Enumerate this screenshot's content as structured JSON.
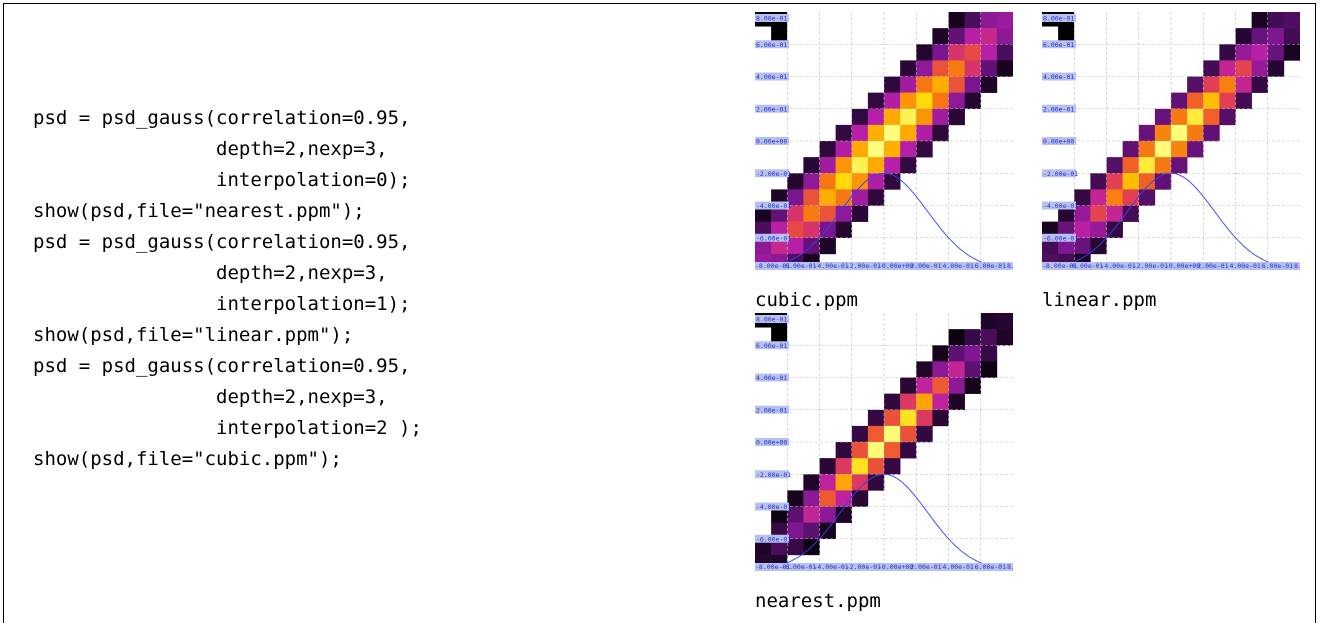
{
  "code": {
    "lines": [
      "psd = psd_gauss(correlation=0.95,",
      "                depth=2,nexp=3,",
      "                interpolation=0);",
      "show(psd,file=\"nearest.ppm\");",
      "psd = psd_gauss(correlation=0.95,",
      "                depth=2,nexp=3,",
      "                interpolation=1);",
      "show(psd,file=\"linear.ppm\");",
      "psd = psd_gauss(correlation=0.95,",
      "                depth=2,nexp=3,",
      "                interpolation=2 );",
      "show(psd,file=\"cubic.ppm\");"
    ]
  },
  "plots": [
    {
      "caption": "cubic.ppm",
      "interpolation": 2
    },
    {
      "caption": "linear.ppm",
      "interpolation": 1
    },
    {
      "caption": "nearest.ppm",
      "interpolation": 0
    }
  ],
  "chart_data": {
    "type": "heatmap",
    "ytick_labels": [
      "8.00e-01",
      "6.00e-01",
      "4.00e-01",
      "2.00e-01",
      "0.00e+00",
      "-2.00e-01",
      "-4.00e-01",
      "-6.00e-01"
    ],
    "xtick_labels": [
      "-8.00e-01",
      "-6.00e-01",
      "-4.00e-01",
      "-2.00e-01",
      "-0.00e+00",
      "2.00e-01",
      "4.00e-01",
      "6.00e-01",
      "8.00e-01"
    ],
    "xlim": [
      -0.8,
      0.8
    ],
    "ylim": [
      -0.8,
      0.8
    ],
    "correlation": 0.95,
    "grid": true,
    "colormap": [
      "#000000",
      "#3a0a4a",
      "#7a1690",
      "#b81fa8",
      "#e03a5a",
      "#f56a1a",
      "#ffa000",
      "#ffd800",
      "#ffff80"
    ],
    "profile_color": "#3344ee",
    "label_bg": "#b8c0f0",
    "label_color": "#2233cc"
  }
}
